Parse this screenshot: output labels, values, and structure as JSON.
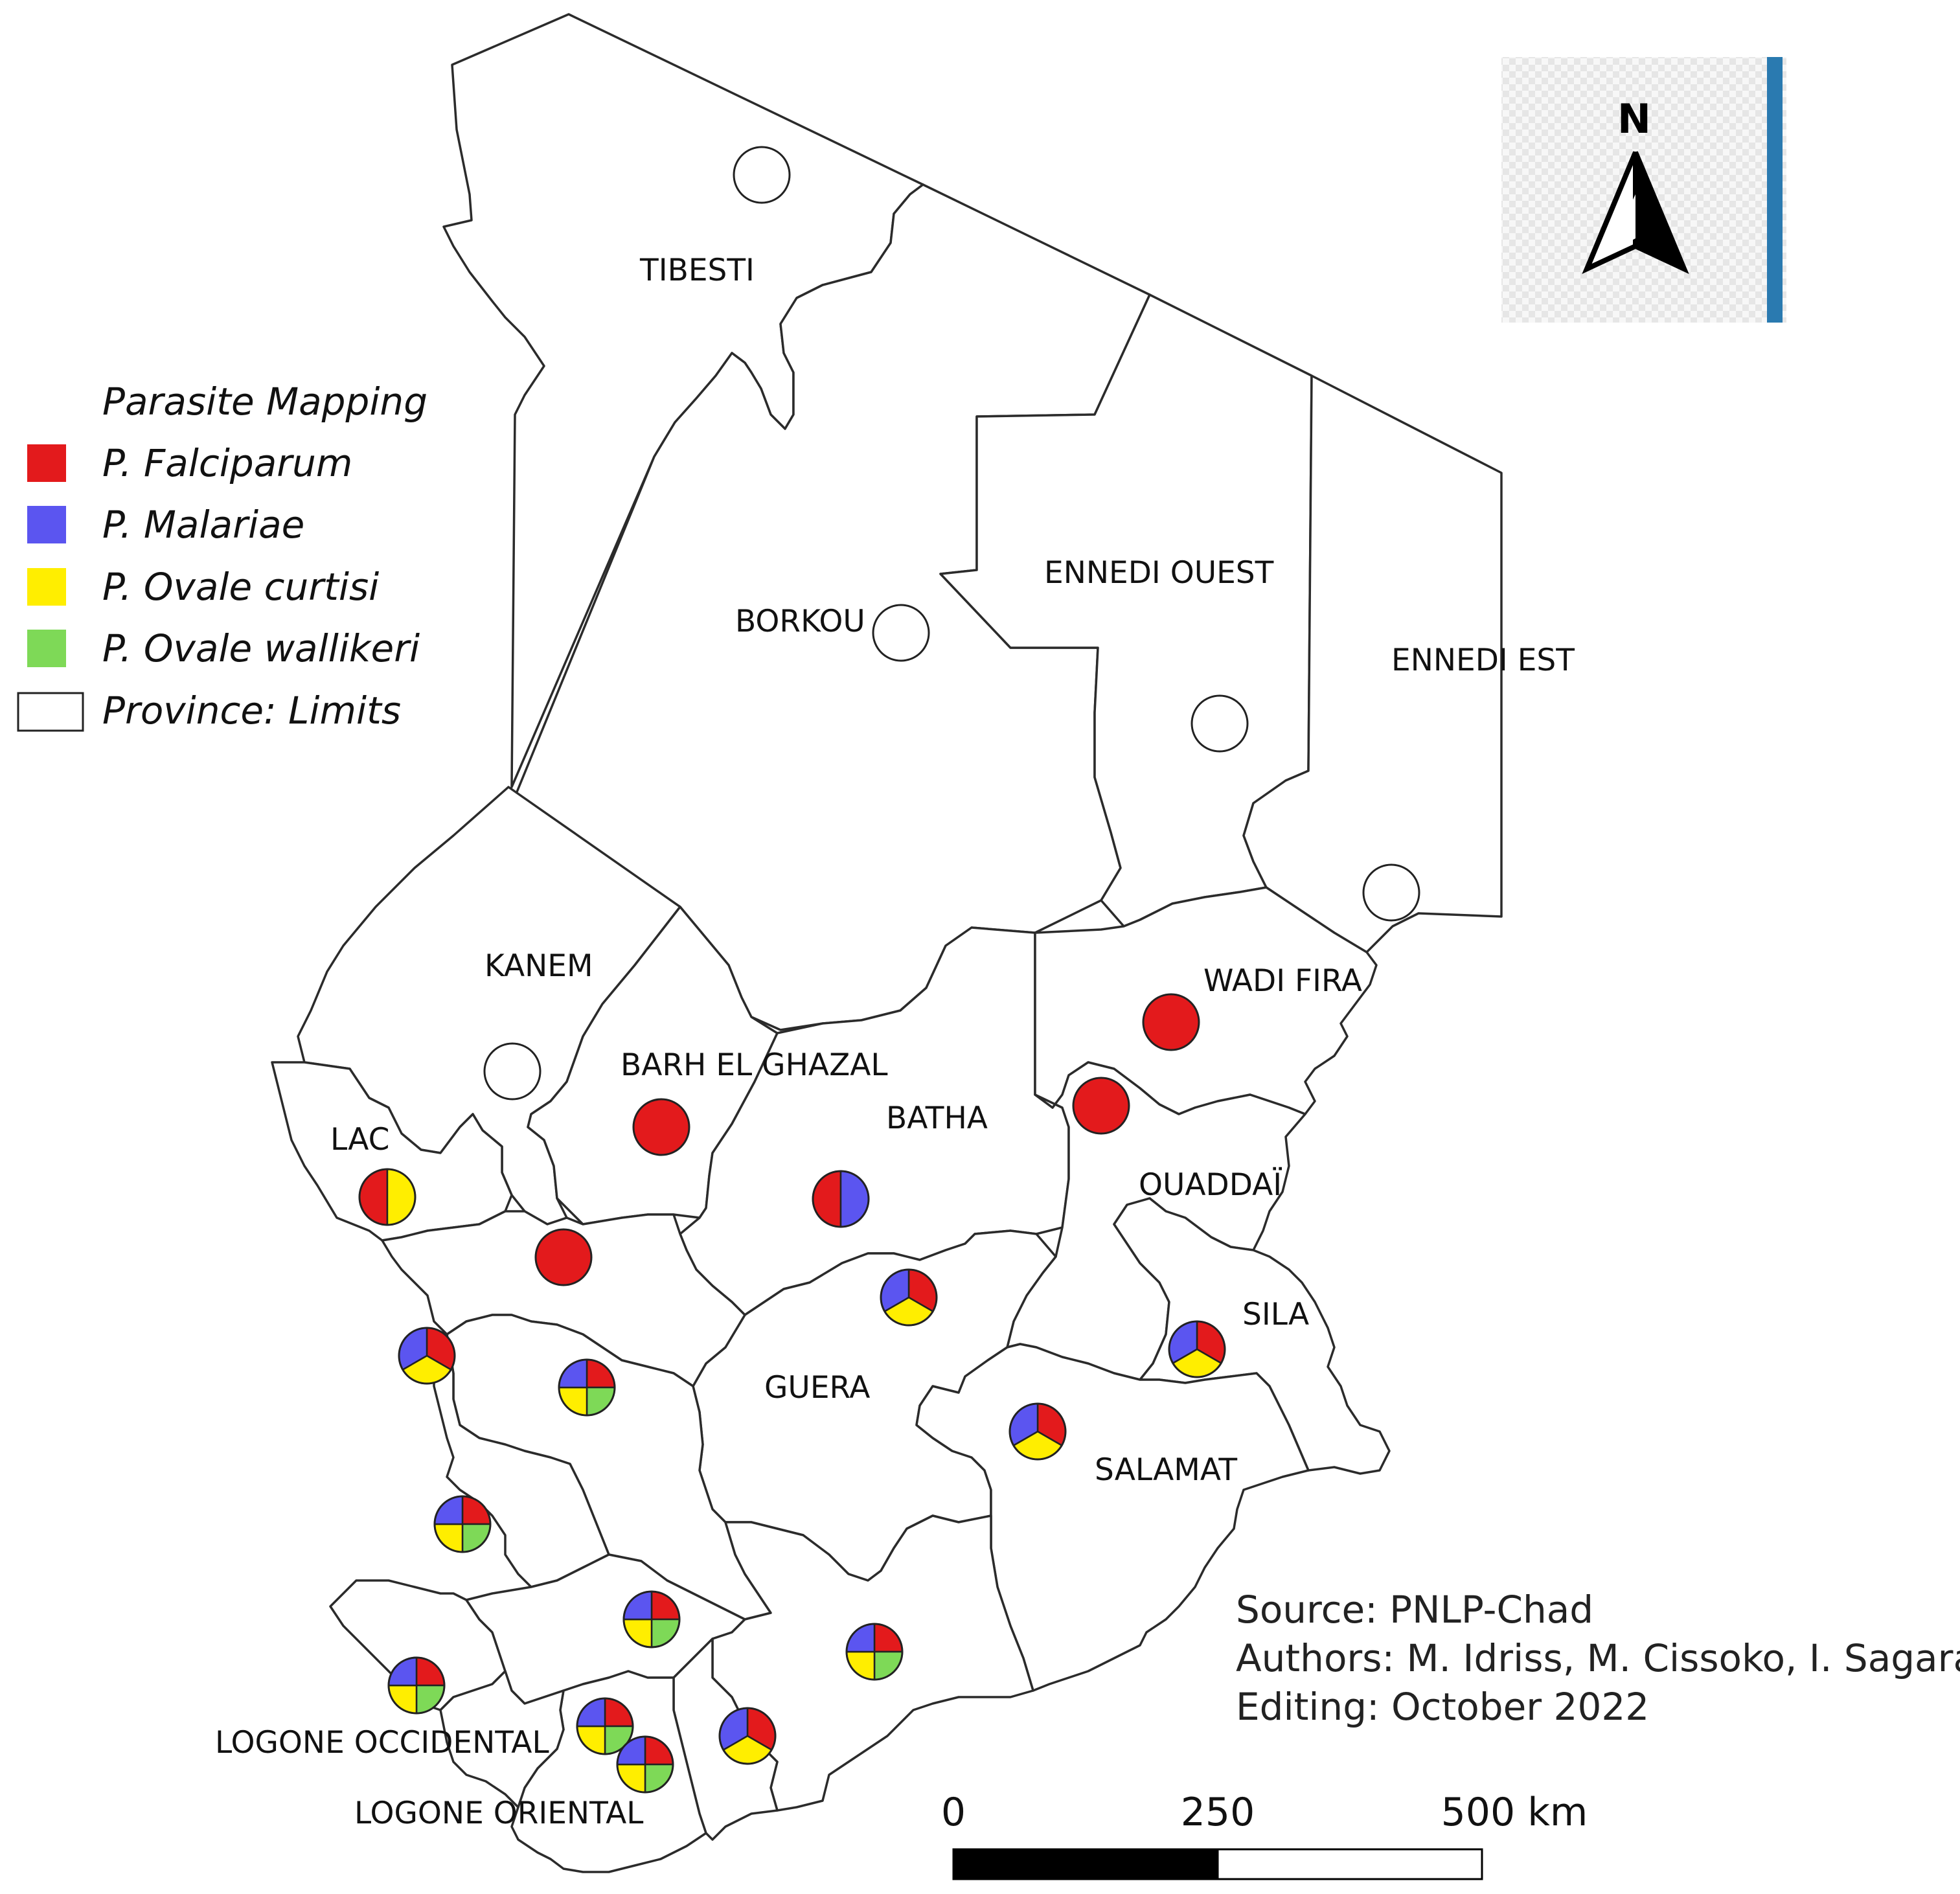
{
  "legend": {
    "title": "Parasite Mapping",
    "items": [
      {
        "key": "falciparum",
        "label": "P. Falciparum",
        "color": "#e31a1c"
      },
      {
        "key": "malariae",
        "label": "P. Malariae",
        "color": "#5b55f0"
      },
      {
        "key": "ovale_curtisi",
        "label": "P. Ovale curtisi",
        "color": "#ffee00"
      },
      {
        "key": "ovale_wallikeri",
        "label": "P. Ovale wallikeri",
        "color": "#7ed957"
      }
    ],
    "limits_label": "Province: Limits"
  },
  "provinces": [
    "TIBESTI",
    "BORKOU",
    "ENNEDI OUEST",
    "ENNEDI EST",
    "KANEM",
    "WADI FIRA",
    "BARH EL GHAZAL",
    "BATHA",
    "LAC",
    "OUADDAÏ",
    "SILA",
    "GUERA",
    "SALAMAT",
    "LOGONE OCCIDENTAL",
    "LOGONE ORIENTAL"
  ],
  "sites": [
    {
      "species": []
    },
    {
      "species": []
    },
    {
      "species": []
    },
    {
      "species": []
    },
    {
      "species": []
    },
    {
      "species": [
        "falciparum"
      ]
    },
    {
      "species": [
        "falciparum"
      ]
    },
    {
      "species": [
        "falciparum"
      ]
    },
    {
      "species": [
        "falciparum"
      ]
    },
    {
      "species": [
        "falciparum",
        "ovale_curtisi"
      ]
    },
    {
      "species": [
        "falciparum",
        "malariae"
      ]
    },
    {
      "species": [
        "falciparum",
        "ovale_curtisi",
        "malariae"
      ]
    },
    {
      "species": [
        "falciparum",
        "ovale_curtisi",
        "malariae"
      ]
    },
    {
      "species": [
        "falciparum",
        "ovale_wallikeri",
        "ovale_curtisi",
        "malariae"
      ]
    },
    {
      "species": [
        "falciparum",
        "ovale_curtisi",
        "malariae"
      ]
    },
    {
      "species": [
        "falciparum",
        "ovale_curtisi",
        "malariae"
      ]
    },
    {
      "species": [
        "falciparum",
        "ovale_wallikeri",
        "ovale_curtisi",
        "malariae"
      ]
    },
    {
      "species": [
        "falciparum",
        "ovale_wallikeri",
        "ovale_curtisi",
        "malariae"
      ]
    },
    {
      "species": [
        "falciparum",
        "ovale_wallikeri",
        "ovale_curtisi",
        "malariae"
      ]
    },
    {
      "species": [
        "falciparum",
        "ovale_wallikeri",
        "ovale_curtisi",
        "malariae"
      ]
    },
    {
      "species": [
        "falciparum",
        "ovale_wallikeri",
        "ovale_curtisi",
        "malariae"
      ]
    },
    {
      "species": [
        "falciparum",
        "ovale_wallikeri",
        "ovale_curtisi",
        "malariae"
      ]
    },
    {
      "species": [
        "falciparum",
        "ovale_curtisi",
        "malariae"
      ]
    }
  ],
  "north_arrow": {
    "label": "N",
    "icon": "north-arrow-icon"
  },
  "scale_bar": {
    "ticks": [
      "0",
      "250",
      "500 km"
    ]
  },
  "info": {
    "source": "Source: PNLP-Chad",
    "authors": "Authors: M. Idriss, M. Cissoko, I. Sagara",
    "editing": "Editing: October 2022"
  }
}
